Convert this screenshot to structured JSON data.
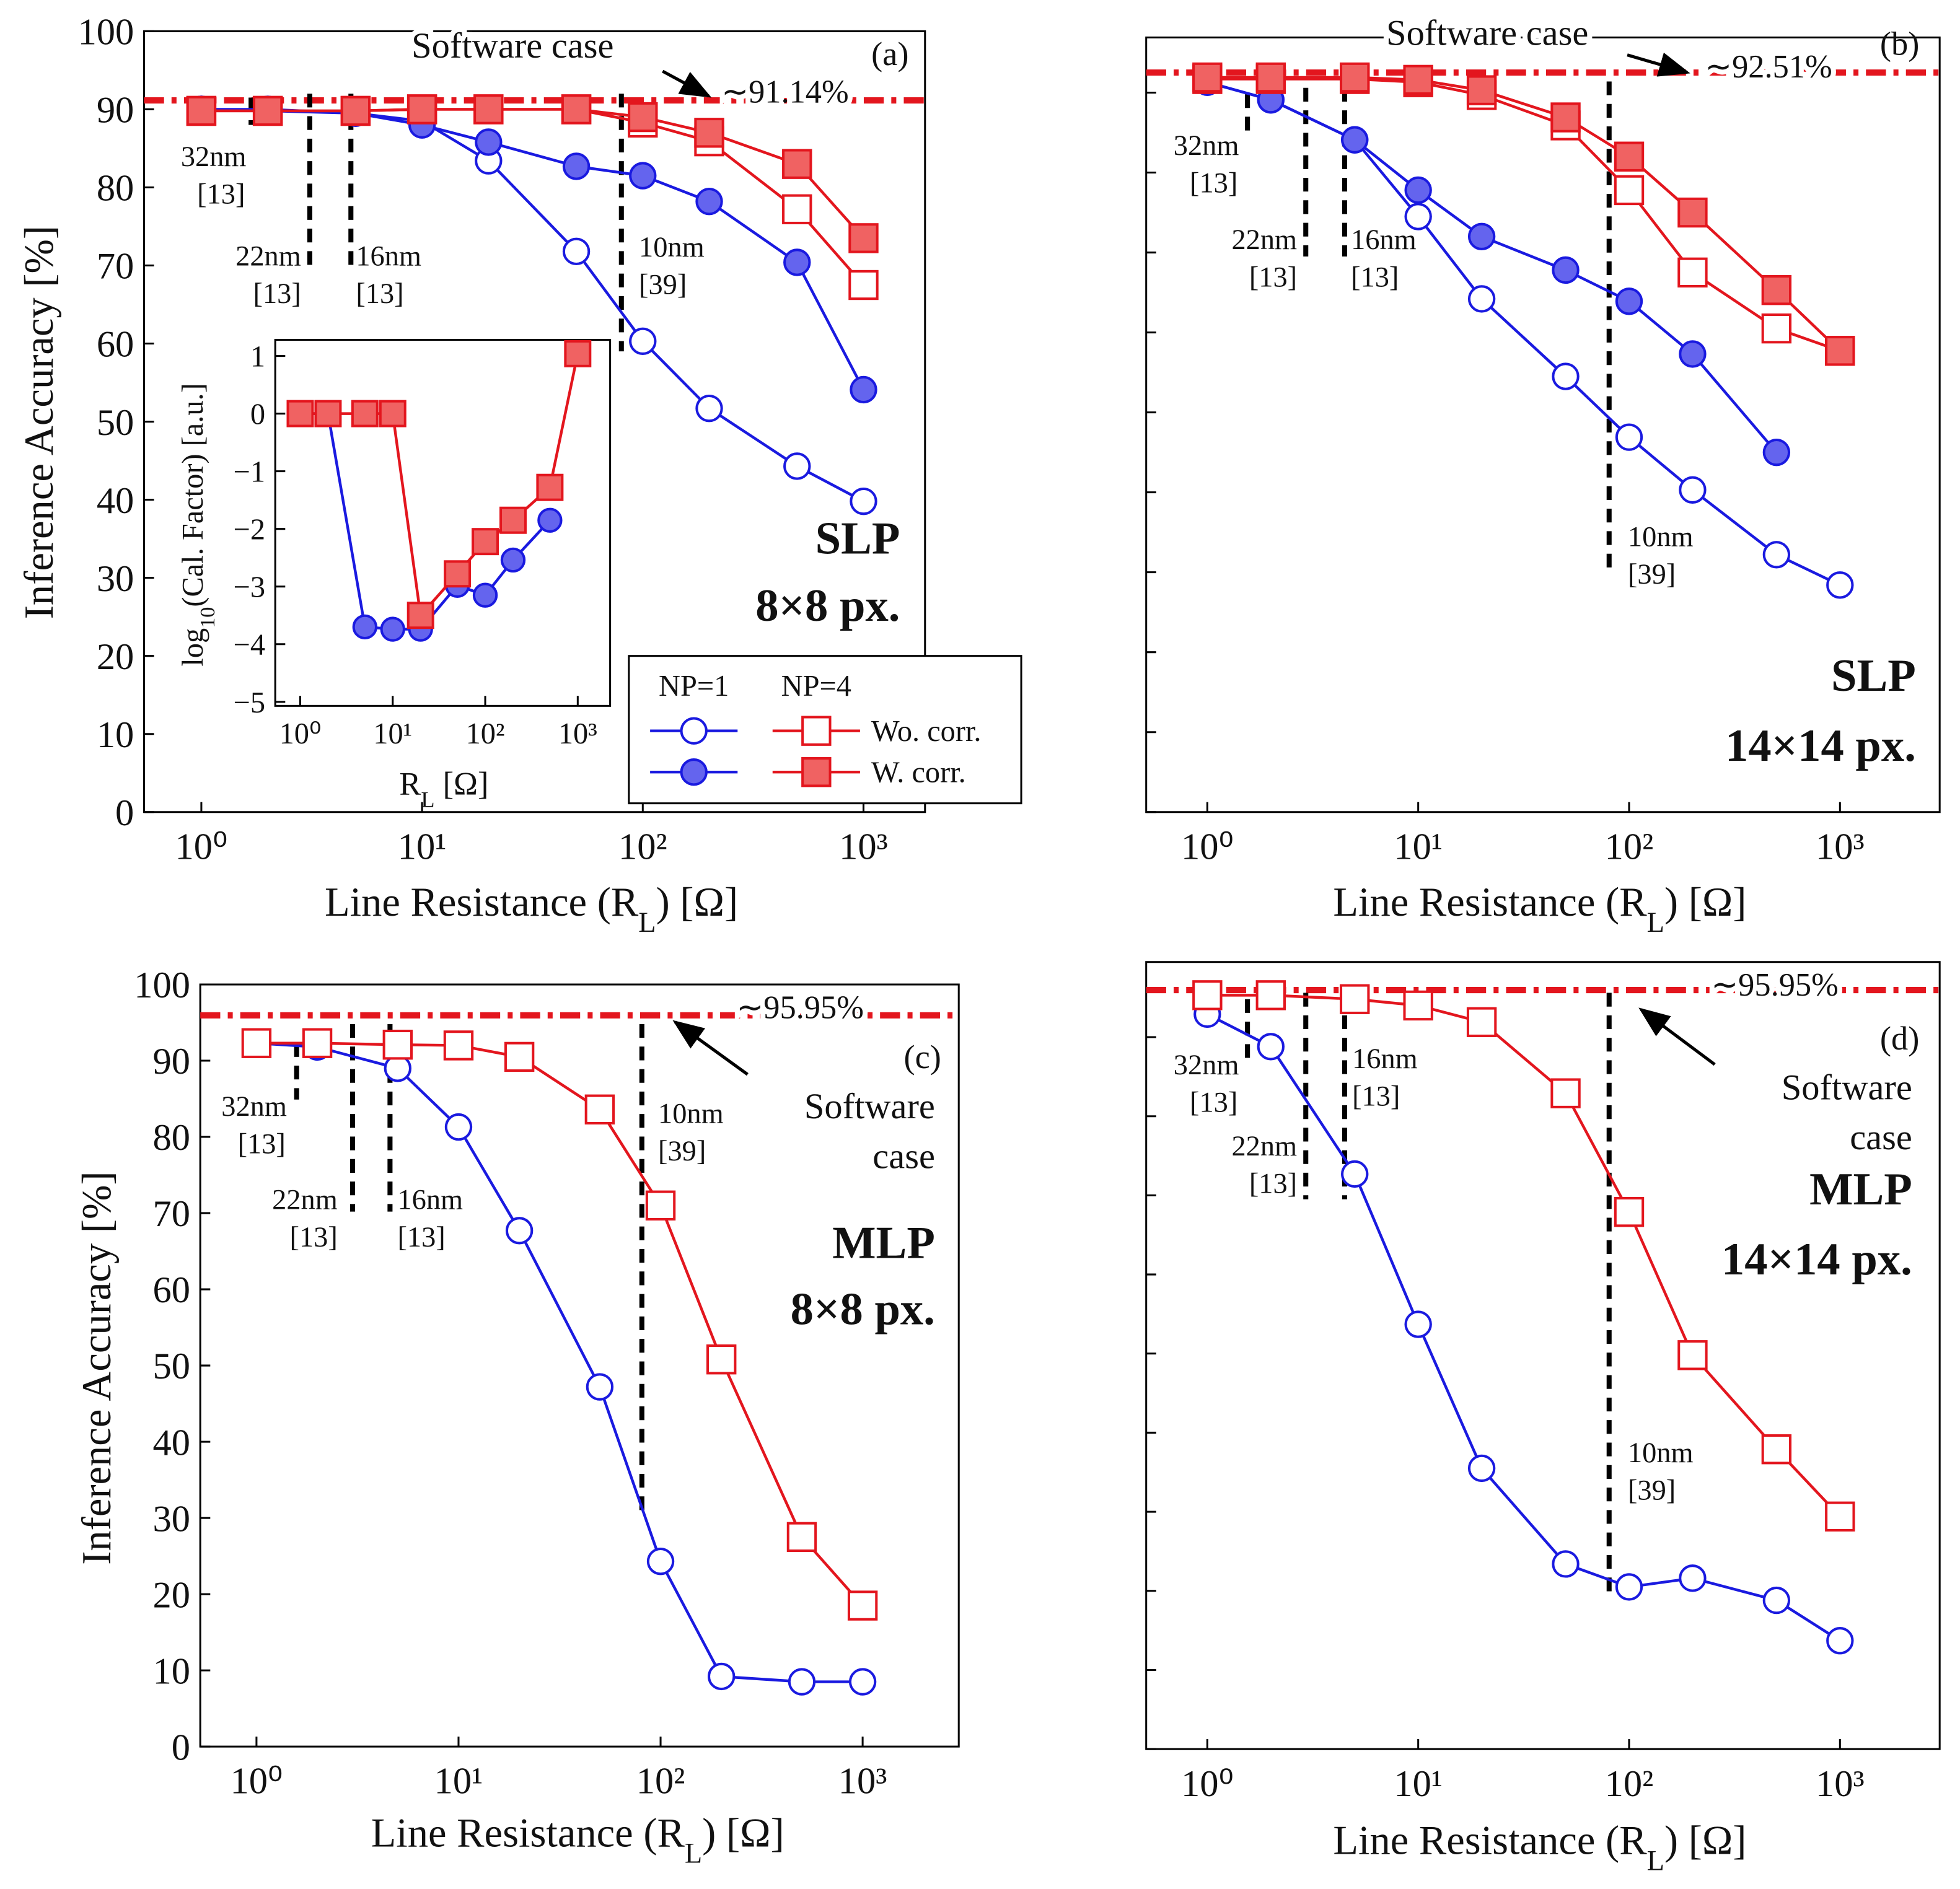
{
  "chart_data": [
    {
      "type": "line",
      "panel_label": "(a)",
      "title": [
        "SLP",
        "8×8 px."
      ],
      "xlabel": [
        "Line Resistance (R",
        "L",
        ") [Ω]"
      ],
      "ylabel": [
        "Inference Accuracy [%]"
      ],
      "log_x": true,
      "xlim": [
        0.55,
        1900
      ],
      "ylim": [
        0,
        100
      ],
      "xticks": [
        {
          "value": 1,
          "label": "10⁰"
        },
        {
          "value": 10,
          "label": "10¹"
        },
        {
          "value": 100,
          "label": "10²"
        },
        {
          "value": 1000,
          "label": "10³"
        }
      ],
      "yticks": [
        0,
        10,
        20,
        30,
        40,
        50,
        60,
        70,
        80,
        90,
        100
      ],
      "ytick_labels": true,
      "x": [
        1,
        2,
        5,
        10,
        20,
        50,
        100,
        200,
        500,
        1000
      ],
      "reference": {
        "value": 91.14,
        "label": "∼91.14%",
        "text": [
          "Software case"
        ]
      },
      "annotations": [
        {
          "text": [
            "32nm",
            "[13]"
          ],
          "x": 1.68,
          "y": [
            91.5,
            88
          ]
        },
        {
          "text": [
            "22nm",
            "[13]"
          ],
          "x": 3.1,
          "y": [
            92,
            70
          ]
        },
        {
          "text": [
            "16nm",
            "[13]"
          ],
          "x": 4.76,
          "y": [
            92,
            70
          ]
        },
        {
          "text": [
            "10nm",
            "[39]"
          ],
          "x": 80,
          "y": [
            92,
            59
          ]
        }
      ],
      "series": [
        {
          "color": "#1a1ae0",
          "fill": "#ffffff",
          "marker": "circle",
          "values": [
            90,
            89.8,
            89.5,
            88.5,
            83.4,
            71.8,
            60.3,
            51.7,
            44.3,
            39.8
          ]
        },
        {
          "color": "#1a1ae0",
          "fill": "#6464ee",
          "marker": "circle",
          "values": [
            90,
            90,
            89.5,
            88,
            85.8,
            82.7,
            81.5,
            78.2,
            70.4,
            54.1
          ]
        },
        {
          "color": "#e3161e",
          "fill": "#ffffff",
          "marker": "square",
          "values": [
            89.8,
            89.8,
            89.8,
            90,
            90,
            90,
            88.3,
            85.9,
            77.2,
            67.5
          ]
        },
        {
          "color": "#e3161e",
          "fill": "#f06262",
          "marker": "square",
          "values": [
            89.8,
            89.8,
            89.8,
            90,
            90,
            90,
            89,
            87,
            83,
            73.5
          ]
        }
      ],
      "legend": {
        "columns": [
          "NP=1",
          "NP=4"
        ],
        "rows": [
          "Wo. corr.",
          "W. corr."
        ]
      }
    },
    {
      "type": "line",
      "panel_label": "(b)",
      "title": [
        "SLP",
        "14×14 px."
      ],
      "xlabel": [
        "Line Resistance (R",
        "L",
        ") [Ω]"
      ],
      "log_x": true,
      "xlim": [
        0.513,
        2970
      ],
      "ylim": [
        0,
        96.9
      ],
      "xticks": [
        {
          "value": 1,
          "label": "10⁰"
        },
        {
          "value": 10,
          "label": "10¹"
        },
        {
          "value": 100,
          "label": "10²"
        },
        {
          "value": 1000,
          "label": "10³"
        }
      ],
      "yticks": [
        0,
        10,
        20,
        30,
        40,
        50,
        60,
        70,
        80,
        90
      ],
      "ytick_labels": false,
      "x": [
        1,
        2,
        5,
        10,
        20,
        50,
        100,
        200,
        500,
        1000
      ],
      "reference": {
        "value": 92.51,
        "label": "∼92.51%",
        "text": [
          "Software case"
        ]
      },
      "annotations": [
        {
          "text": [
            "32nm",
            "[13]"
          ],
          "x": 1.55,
          "y": [
            89.8,
            85.2
          ]
        },
        {
          "text": [
            "22nm",
            "[13]"
          ],
          "x": 2.93,
          "y": [
            90.6,
            69.5
          ]
        },
        {
          "text": [
            "16nm",
            "[13]"
          ],
          "x": 4.48,
          "y": [
            90.6,
            69.5
          ]
        },
        {
          "text": [
            "10nm",
            "[39]"
          ],
          "x": 80.4,
          "y": [
            91.4,
            30
          ]
        }
      ],
      "series": [
        {
          "color": "#1a1ae0",
          "fill": "#ffffff",
          "marker": "circle",
          "values": [
            91.3,
            89.1,
            84.1,
            74.5,
            64.2,
            54.5,
            46.9,
            40.3,
            32.2,
            28.4
          ]
        },
        {
          "color": "#1a1ae0",
          "fill": "#6464ee",
          "marker": "circle",
          "values": [
            91.3,
            89.1,
            84.1,
            77.8,
            72,
            67.8,
            63.9,
            57.3,
            45,
            null
          ]
        },
        {
          "color": "#e3161e",
          "fill": "#ffffff",
          "marker": "square",
          "values": [
            91.7,
            91.7,
            91.7,
            91.3,
            89.7,
            85.9,
            77.8,
            67.5,
            60.5,
            57.7
          ]
        },
        {
          "color": "#e3161e",
          "fill": "#f06262",
          "marker": "square",
          "values": [
            91.9,
            91.9,
            91.9,
            91.6,
            90.3,
            86.9,
            82,
            75,
            65.3,
            57.7
          ]
        }
      ]
    },
    {
      "type": "line",
      "panel_label": "(c)",
      "title": [
        "MLP",
        "8×8 px."
      ],
      "xlabel": [
        "Line Resistance (R",
        "L",
        ") [Ω]"
      ],
      "ylabel": [
        "Inference Accuracy [%]"
      ],
      "log_x": true,
      "xlim": [
        0.527,
        2990
      ],
      "ylim": [
        0,
        100
      ],
      "xticks": [
        {
          "value": 1,
          "label": "10⁰"
        },
        {
          "value": 10,
          "label": "10¹"
        },
        {
          "value": 100,
          "label": "10²"
        },
        {
          "value": 1000,
          "label": "10³"
        }
      ],
      "yticks": [
        0,
        10,
        20,
        30,
        40,
        50,
        60,
        70,
        80,
        90,
        100
      ],
      "ytick_labels": true,
      "x": [
        1,
        2,
        5,
        10,
        20,
        50,
        100,
        200,
        500,
        1000
      ],
      "reference": {
        "value": 95.95,
        "label": "∼95.95%",
        "text": [
          "Software",
          "case"
        ]
      },
      "annotations": [
        {
          "text": [
            "32nm",
            "[13]"
          ],
          "x": 1.58,
          "y": [
            92.3,
            84.9
          ]
        },
        {
          "text": [
            "22nm",
            "[13]"
          ],
          "x": 2.99,
          "y": [
            94.8,
            70.2
          ]
        },
        {
          "text": [
            "16nm",
            "[13]"
          ],
          "x": 4.58,
          "y": [
            94.8,
            70.2
          ]
        },
        {
          "text": [
            "10nm",
            "[39]"
          ],
          "x": 80.8,
          "y": [
            94.8,
            30.2
          ]
        }
      ],
      "series": [
        {
          "color": "#1a1ae0",
          "fill": "#ffffff",
          "marker": "circle",
          "values": [
            92.3,
            91.8,
            89,
            81.3,
            67.7,
            47.2,
            24.3,
            9.2,
            8.5,
            8.5
          ]
        },
        {
          "color": "#e3161e",
          "fill": "#ffffff",
          "marker": "square",
          "values": [
            92.3,
            92.3,
            92.1,
            92,
            90.5,
            83.6,
            71,
            50.8,
            27.5,
            18.5
          ]
        }
      ]
    },
    {
      "type": "line",
      "panel_label": "(d)",
      "title": [
        "MLP",
        "14×14 px."
      ],
      "xlabel": [
        "Line Resistance (R",
        "L",
        ") [Ω]"
      ],
      "log_x": true,
      "xlim": [
        0.513,
        2970
      ],
      "ylim": [
        0,
        99.5
      ],
      "xticks": [
        {
          "value": 1,
          "label": "10⁰"
        },
        {
          "value": 10,
          "label": "10¹"
        },
        {
          "value": 100,
          "label": "10²"
        },
        {
          "value": 1000,
          "label": "10³"
        }
      ],
      "yticks": [
        0,
        10,
        20,
        30,
        40,
        50,
        60,
        70,
        80,
        90
      ],
      "ytick_labels": false,
      "x": [
        1,
        2,
        5,
        10,
        20,
        50,
        100,
        200,
        500,
        1000
      ],
      "reference": {
        "value": 95.95,
        "label": "∼95.95%",
        "text": [
          "Software",
          "case"
        ]
      },
      "annotations": [
        {
          "text": [
            "32nm",
            "[13]"
          ],
          "x": 1.55,
          "y": [
            94.8,
            86.9
          ]
        },
        {
          "text": [
            "22nm",
            "[13]"
          ],
          "x": 2.93,
          "y": [
            95.6,
            69.5
          ]
        },
        {
          "text": [
            "16nm",
            "[13]"
          ],
          "x": 4.48,
          "y": [
            95.6,
            69.5
          ]
        },
        {
          "text": [
            "10nm",
            "[39]"
          ],
          "x": 80.4,
          "y": [
            95.6,
            19.7
          ]
        }
      ],
      "series": [
        {
          "color": "#1a1ae0",
          "fill": "#ffffff",
          "marker": "circle",
          "values": [
            92.9,
            88.8,
            72.7,
            53.7,
            35.5,
            23.4,
            20.5,
            21.6,
            18.8,
            13.7
          ]
        },
        {
          "color": "#e3161e",
          "fill": "#ffffff",
          "marker": "square",
          "values": [
            95.3,
            95.3,
            94.8,
            94,
            91.9,
            82.9,
            67.9,
            49.8,
            37.9,
            29.4
          ]
        }
      ]
    },
    {
      "type": "line",
      "xlabel": [
        "R",
        "L",
        " [Ω]"
      ],
      "ylabel": [
        "log",
        "10",
        "(Cal. Factor) [a.u.]"
      ],
      "log_x": true,
      "xlim": [
        0.537,
        2240
      ],
      "ylim": [
        -5.07,
        1.28
      ],
      "xticks": [
        {
          "value": 1,
          "label": "10⁰"
        },
        {
          "value": 10,
          "label": "10¹"
        },
        {
          "value": 100,
          "label": "10²"
        },
        {
          "value": 1000,
          "label": "10³"
        }
      ],
      "yticks": [
        1,
        0,
        {
          "value": -1,
          "label": "−1"
        },
        {
          "value": -2,
          "label": "−2"
        },
        {
          "value": -3,
          "label": "−3"
        },
        {
          "value": -4,
          "label": "−4"
        },
        {
          "value": -5,
          "label": "−5"
        }
      ],
      "ytick_labels": true,
      "x": [
        1,
        2,
        5,
        10,
        20,
        50,
        100,
        200,
        500,
        1000
      ],
      "series": [
        {
          "color": "#1a1ae0",
          "fill": "#6464ee",
          "marker": "circle",
          "values": [
            0,
            0,
            -3.7,
            -3.74,
            -3.74,
            -2.98,
            -3.15,
            -2.54,
            -1.85,
            null
          ]
        },
        {
          "color": "#e3161e",
          "fill": "#f06262",
          "marker": "square",
          "values": [
            0,
            0,
            0,
            0,
            -3.5,
            -2.78,
            -2.22,
            -1.85,
            -1.28,
            1.04
          ]
        }
      ]
    }
  ]
}
